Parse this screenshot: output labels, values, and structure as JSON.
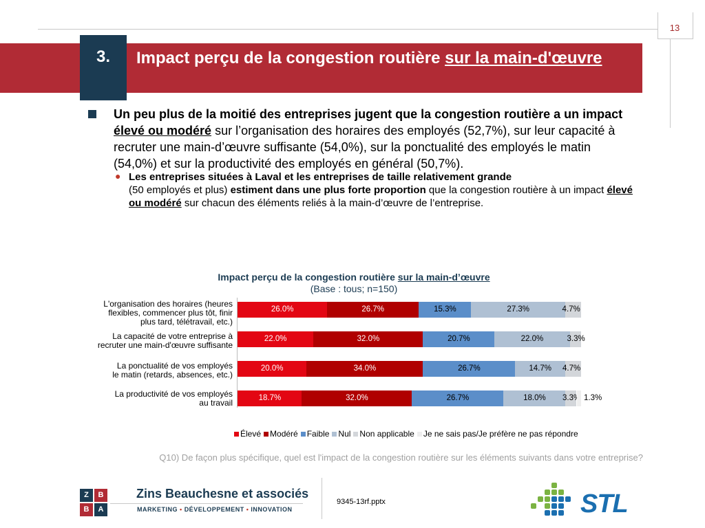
{
  "page_number": "13",
  "header": {
    "section_number": "3.",
    "title_part1": "Impact perçu de la congestion routière ",
    "title_underlined": "sur la main-d'œuvre"
  },
  "bullet1": {
    "bold_intro": "Un peu plus de la moitié des entreprises jugent que la congestion routière a un impact",
    "bold_underlined": "élevé ou modéré",
    "rest": " sur l’organisation des horaires des employés (52,7%), sur leur capacité à recruter une main-d’œuvre suffisante (54,0%), sur la ponctualité des employés le matin (54,0%) et sur la productivité des employés en général (50,7%)."
  },
  "bullet2": {
    "bold1": "Les entreprises situées à Laval et les entreprises de taille relativement grande",
    "normal1": "(50 employés et plus) ",
    "bold2": "estiment dans une plus forte proportion",
    "normal2": " que la congestion routière à un impact ",
    "bold_underlined": "élevé ou modéré",
    "normal3": " sur chacun des éléments reliés à la main-d’œuvre de l’entreprise."
  },
  "chart_data": {
    "type": "bar",
    "orientation": "horizontal",
    "stacked": true,
    "title_part1": "Impact perçu de la congestion routière ",
    "title_underlined": "sur la main-d’œuvre",
    "subtitle": "(Base : tous; n=150)",
    "categories": [
      [
        "L'organisation des horaires (heures",
        "flexibles, commencer plus tôt, finir",
        "plus tard, télétravail, etc.)"
      ],
      [
        "La capacité de votre entreprise à",
        "recruter une main-d'œuvre suffisante"
      ],
      [
        "La ponctualité de vos employés",
        "le matin (retards, absences, etc.)"
      ],
      [
        "La productivité de vos employés",
        "au travail"
      ]
    ],
    "series": [
      {
        "name": "Élevé",
        "color": "#e30613",
        "values": [
          26.0,
          22.0,
          20.0,
          18.7
        ],
        "labels": [
          "26.0%",
          "22.0%",
          "20.0%",
          "18.7%"
        ]
      },
      {
        "name": "Modéré",
        "color": "#b00000",
        "values": [
          26.7,
          32.0,
          34.0,
          32.0
        ],
        "labels": [
          "26.7%",
          "32.0%",
          "34.0%",
          "32.0%"
        ]
      },
      {
        "name": "Faible",
        "color": "#5b8ec9",
        "values": [
          15.3,
          20.7,
          26.7,
          26.7
        ],
        "labels": [
          "15.3%",
          "20.7%",
          "26.7%",
          "26.7%"
        ]
      },
      {
        "name": "Nul",
        "color": "#afc0d3",
        "values": [
          27.3,
          22.0,
          14.7,
          18.0
        ],
        "labels": [
          "27.3%",
          "22.0%",
          "14.7%",
          "18.0%"
        ]
      },
      {
        "name": "Non applicable",
        "color": "#d3d6da",
        "values": [
          4.7,
          3.3,
          4.7,
          3.3
        ],
        "labels": [
          "4.7%",
          "3.3%",
          "4.7%",
          "3.3%"
        ]
      },
      {
        "name": "Je ne sais pas/Je préfère ne pas répondre",
        "color": "#eeeeee",
        "values": [
          0,
          0,
          0,
          1.3
        ],
        "labels": [
          "",
          "",
          "",
          "1.3%"
        ]
      }
    ],
    "xlim": [
      0,
      100
    ]
  },
  "question": "Q10) De façon plus spécifique, quel est l'impact de la congestion routière sur les éléments suivants dans votre entreprise?",
  "footer": {
    "zba_letters": [
      "Z",
      "B",
      "B",
      "A"
    ],
    "firm_name": "Zins Beauchesne et associés",
    "tag1": "MARKETING",
    "tag2": "DÉVELOPPEMENT",
    "tag3": "INNOVATION",
    "tag_sep": "•",
    "file_name": "9345-13rf.pptx",
    "logo_text": "STL"
  }
}
